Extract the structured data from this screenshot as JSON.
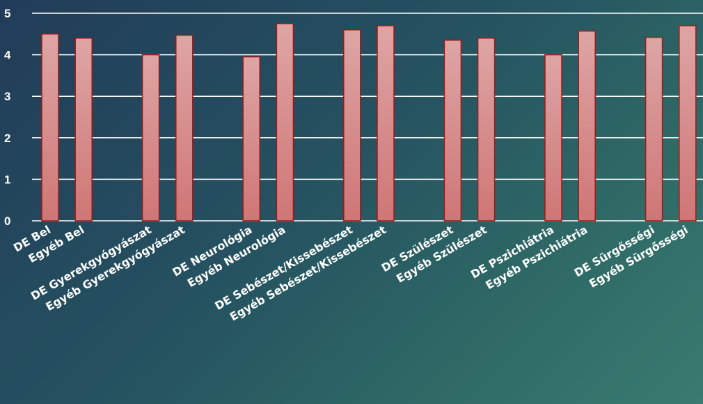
{
  "chart_data": {
    "type": "bar",
    "title": "",
    "xlabel": "",
    "ylabel": "",
    "ylim": [
      0,
      5
    ],
    "yticks": [
      0,
      1,
      2,
      3,
      4,
      5
    ],
    "grid": true,
    "legend": "none",
    "colors": {
      "bar_top": "#dea5a5",
      "bar_bottom": "#cf7676",
      "bar_border": "#a01818",
      "text": "#ffffff",
      "grid": "#ffffff"
    },
    "categories": [
      "DE Bel",
      "Egyéb Bel",
      "",
      "DE Gyerekgyógyászat",
      "Egyéb Gyerekgyógyászat",
      "",
      "DE Neurológia",
      "Egyéb Neurológia",
      "",
      "DE Sebészet/Kissebészet",
      "Egyéb Sebészet/Kissebészet",
      "",
      "DE Szülészet",
      "Egyéb Szülészet",
      "",
      "DE Pszichiátria",
      "Egyéb Pszichiátria",
      "",
      "DE Sürgősségi",
      "Egyéb Sürgősségi"
    ],
    "values": [
      4.5,
      4.4,
      null,
      4.0,
      4.47,
      null,
      3.95,
      4.75,
      null,
      4.6,
      4.7,
      null,
      4.35,
      4.4,
      null,
      4.0,
      4.57,
      null,
      4.42,
      4.7
    ]
  }
}
